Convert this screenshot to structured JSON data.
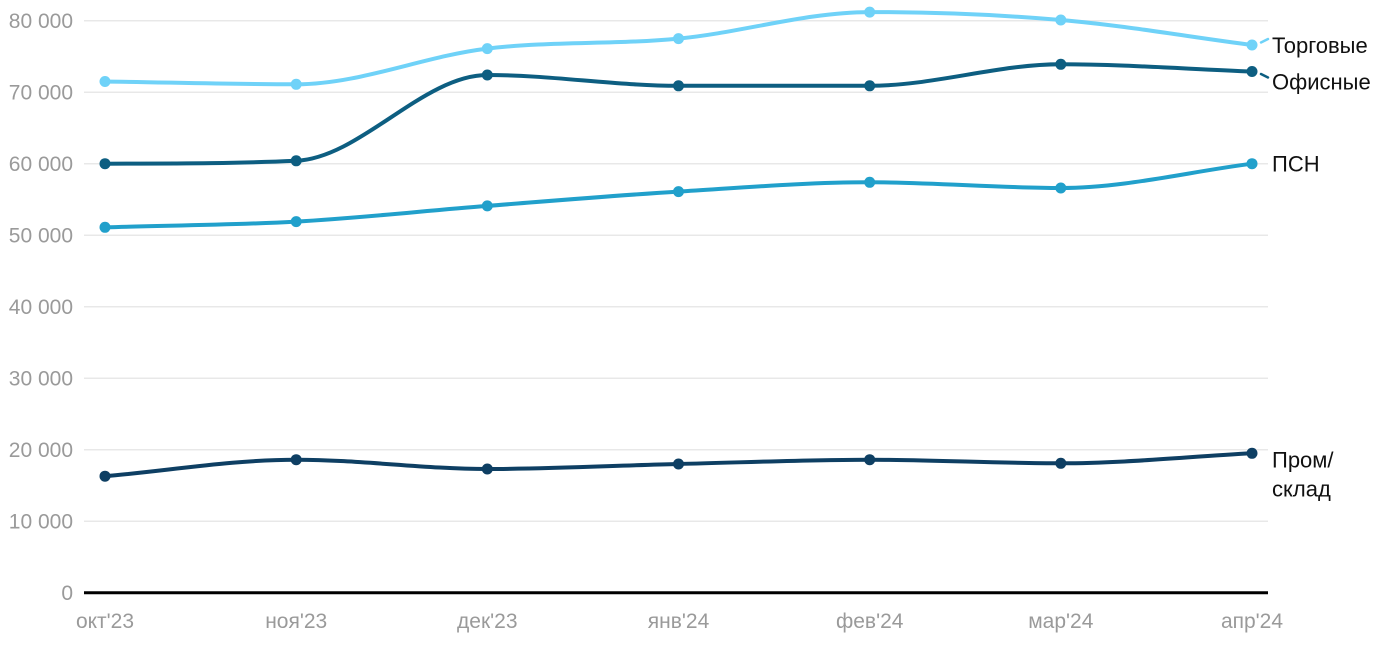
{
  "chart_data": {
    "type": "line",
    "title": "",
    "xlabel": "",
    "ylabel": "",
    "x_categories": [
      "окт'23",
      "ноя'23",
      "дек'23",
      "янв'24",
      "фев'24",
      "мар'24",
      "апр'24"
    ],
    "ylim": [
      0,
      80000
    ],
    "grid": "horizontal",
    "legend_position": "right-end-labels",
    "y_ticks": [
      {
        "value": 0,
        "label": "0"
      },
      {
        "value": 10000,
        "label": "10 000"
      },
      {
        "value": 20000,
        "label": "20 000"
      },
      {
        "value": 30000,
        "label": "30 000"
      },
      {
        "value": 40000,
        "label": "40 000"
      },
      {
        "value": 50000,
        "label": "50 000"
      },
      {
        "value": 60000,
        "label": "60 000"
      },
      {
        "value": 70000,
        "label": "70 000"
      },
      {
        "value": 80000,
        "label": "80 000"
      }
    ],
    "series": [
      {
        "id": "torgovye",
        "name": "Торговые",
        "label_lines": [
          "Торговые"
        ],
        "color": "#6fd2f8",
        "values": [
          71500,
          71100,
          76100,
          77500,
          81200,
          80100,
          76600
        ],
        "end_dash": "up",
        "label_offset": 0
      },
      {
        "id": "ofisnye",
        "name": "Офисные",
        "label_lines": [
          "Офисные"
        ],
        "color": "#0d5e81",
        "values": [
          60000,
          60400,
          72400,
          70900,
          70900,
          73900,
          72900
        ],
        "end_dash": "down",
        "label_offset": 10
      },
      {
        "id": "psn",
        "name": "ПСН",
        "label_lines": [
          "ПСН"
        ],
        "color": "#21a0cb",
        "values": [
          51100,
          51900,
          54100,
          56100,
          57400,
          56600,
          60000
        ],
        "end_dash": null,
        "label_offset": 0
      },
      {
        "id": "prom-sklad",
        "name": "Пром/склад",
        "label_lines": [
          "Пром/",
          "склад"
        ],
        "color": "#0e3f63",
        "values": [
          16300,
          18600,
          17300,
          18000,
          18600,
          18100,
          19500
        ],
        "end_dash": null,
        "label_offset": 6
      }
    ],
    "colors": {
      "tick_label": "#9a9a9a",
      "grid": "#e8e8e8",
      "axis": "#000000",
      "series_label": "#111111",
      "background": "#ffffff"
    }
  }
}
